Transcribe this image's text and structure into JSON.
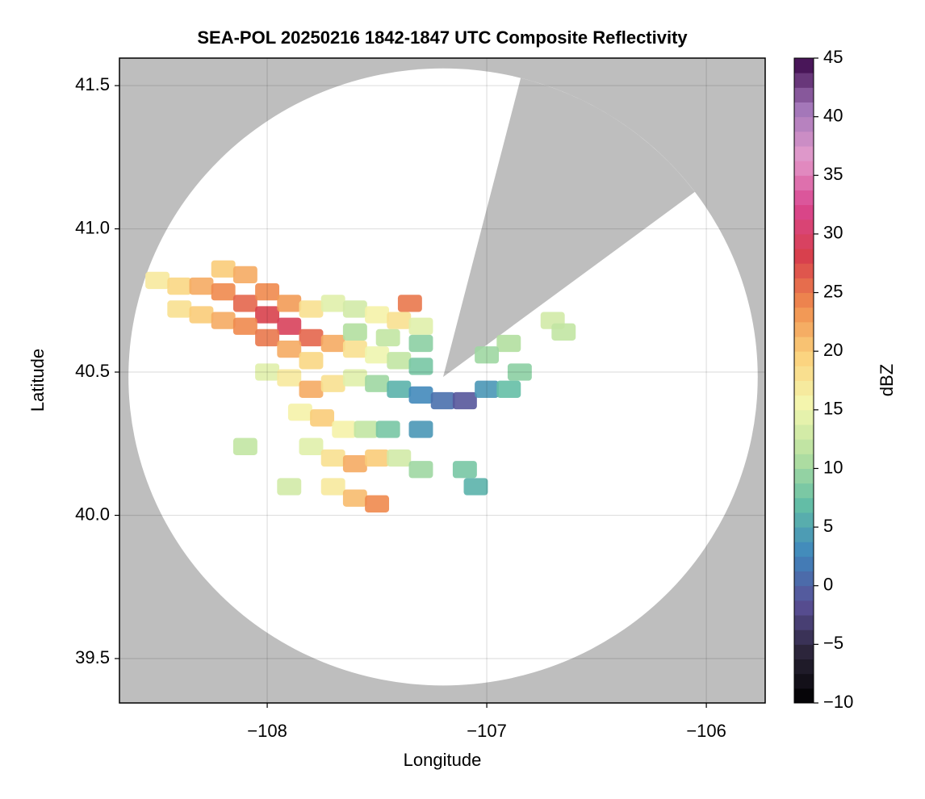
{
  "chart_data": {
    "type": "radar-map",
    "title": "SEA-POL 20250216 1842-1847 UTC Composite Reflectivity",
    "xlabel": "Longitude",
    "ylabel": "Latitude",
    "xlim": [
      -108.673,
      -105.732
    ],
    "ylim": [
      39.345,
      41.596
    ],
    "xticks": [
      {
        "value": -108,
        "label": "−108"
      },
      {
        "value": -107,
        "label": "−107"
      },
      {
        "value": -106,
        "label": "−106"
      }
    ],
    "yticks": [
      39.5,
      {
        "value": 40.0,
        "label": "40.0"
      },
      40.5,
      {
        "value": 41.0,
        "label": "41.0"
      },
      41.5
    ],
    "grid": true,
    "background": "#bebebe",
    "coverage": {
      "center": [
        -107.199,
        40.483
      ],
      "radius": [
        1.433,
        1.077
      ],
      "color": "#ffffff",
      "blocked_sector": [
        [
          -106.846,
          41.525
        ],
        [
          -106.063,
          41.123
        ]
      ]
    },
    "colorbar": {
      "label": "dBZ",
      "lim": [
        -10,
        45
      ],
      "ticks": [
        {
          "value": -10,
          "label": "−10"
        },
        {
          "value": -5,
          "label": "−5"
        },
        0,
        5,
        10,
        15,
        20,
        25,
        30,
        35,
        40,
        45
      ]
    },
    "colormap": [
      "#000000",
      "#2a2438",
      "#5a4f96",
      "#3f86bd",
      "#63bea6",
      "#b6e0a0",
      "#f4f7b0",
      "#fbd27d",
      "#f08d4e",
      "#d8404c",
      "#d9468f",
      "#e39bcc",
      "#a276b8",
      "#3a0548"
    ],
    "x": [
      -108.5,
      -108.4,
      -108.3,
      -108.2,
      -108.1,
      -108.0,
      -107.9,
      -107.8,
      -107.7,
      -107.6,
      -107.5,
      -107.4,
      -107.3,
      -108.4,
      -108.3,
      -108.2,
      -108.1,
      -108.0,
      -107.9,
      -107.8,
      -108.2,
      -108.1,
      -108.0,
      -107.9,
      -107.8,
      -107.7,
      -107.6,
      -107.5,
      -107.4,
      -107.35,
      -107.3,
      -107.45,
      -107.6,
      -107.3,
      -108.0,
      -107.9,
      -107.8,
      -107.7,
      -107.6,
      -107.5,
      -107.4,
      -107.3,
      -107.2,
      -107.1,
      -107.0,
      -106.9,
      -106.85,
      -107.85,
      -107.75,
      -107.65,
      -107.55,
      -107.45,
      -107.3,
      -107.8,
      -107.7,
      -107.6,
      -107.5,
      -107.4,
      -107.3,
      -107.1,
      -107.05,
      -107.7,
      -107.6,
      -107.5,
      -108.1,
      -107.9,
      -106.7,
      -106.65,
      -106.9,
      -107.0
    ],
    "y": [
      40.82,
      40.8,
      40.8,
      40.78,
      40.74,
      40.7,
      40.66,
      40.62,
      40.6,
      40.58,
      40.56,
      40.54,
      40.52,
      40.72,
      40.7,
      40.68,
      40.66,
      40.62,
      40.58,
      40.54,
      40.86,
      40.84,
      40.78,
      40.74,
      40.72,
      40.74,
      40.72,
      40.7,
      40.68,
      40.74,
      40.66,
      40.62,
      40.64,
      40.6,
      40.5,
      40.48,
      40.44,
      40.46,
      40.48,
      40.46,
      40.44,
      40.42,
      40.4,
      40.4,
      40.44,
      40.44,
      40.5,
      40.36,
      40.34,
      40.3,
      40.3,
      40.3,
      40.3,
      40.24,
      40.2,
      40.18,
      40.2,
      40.2,
      40.16,
      40.16,
      40.1,
      40.1,
      40.06,
      40.04,
      40.24,
      40.1,
      40.68,
      40.64,
      40.6,
      40.56
    ],
    "values": [
      17,
      19,
      22,
      24,
      26,
      28,
      29,
      26,
      22,
      18,
      15,
      12,
      8,
      18,
      20,
      22,
      24,
      25,
      22,
      19,
      20,
      22,
      24,
      23,
      18,
      14,
      13,
      16,
      18,
      25,
      14,
      12,
      11,
      9,
      14,
      17,
      22,
      18,
      14,
      10,
      6,
      3,
      1,
      -1,
      4,
      7,
      9,
      16,
      20,
      16,
      12,
      8,
      4,
      14,
      18,
      22,
      20,
      13,
      10,
      8,
      6,
      17,
      21,
      24,
      12,
      13,
      13,
      12,
      11,
      10
    ]
  }
}
